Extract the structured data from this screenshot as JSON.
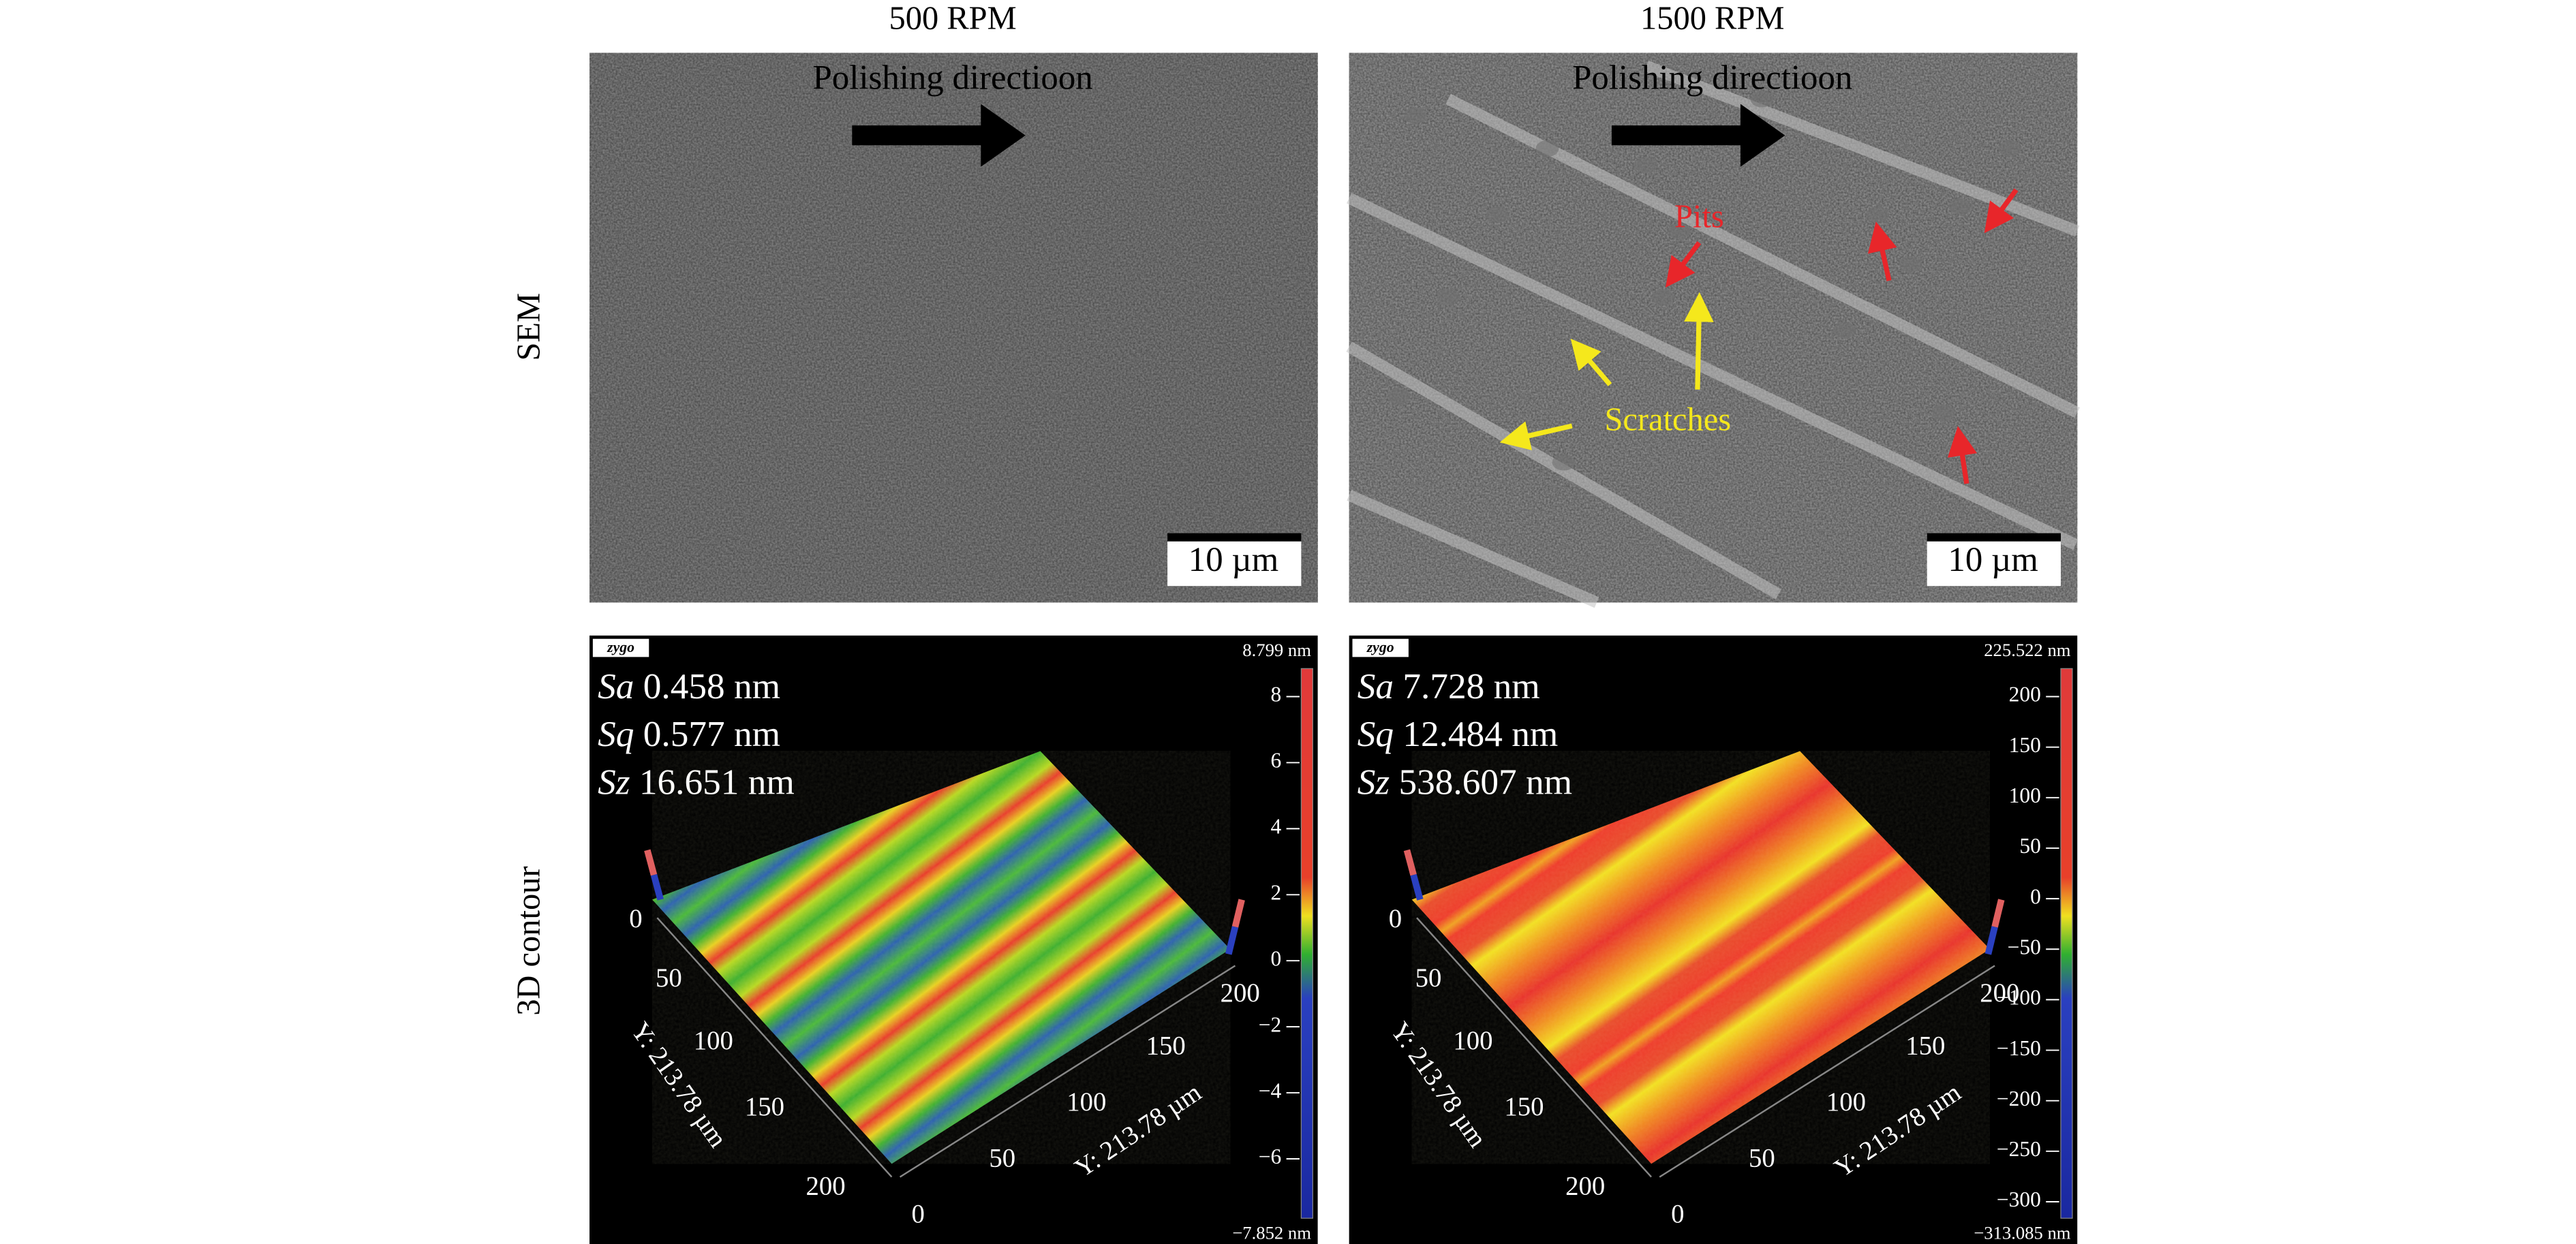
{
  "columns": [
    "500 RPM",
    "1500 RPM"
  ],
  "rows": [
    "SEM",
    "3D contour"
  ],
  "sem": [
    {
      "direction": "Polishing directioon",
      "scale_bar": "10 µm"
    },
    {
      "direction": "Polishing directioon",
      "scale_bar": "10 µm",
      "pits": "Pits",
      "scratches": "Scratches"
    }
  ],
  "contour": [
    {
      "logo": "zygo",
      "roughness": [
        {
          "param": "Sa",
          "value": "0.458 nm"
        },
        {
          "param": "Sq",
          "value": "0.577 nm"
        },
        {
          "param": "Sz",
          "value": "16.651 nm"
        }
      ],
      "max": "8.799 nm",
      "min": "−7.852 nm",
      "scale_ticks": [
        "8",
        "6",
        "4",
        "2",
        "0",
        "−2",
        "−4",
        "−6"
      ],
      "left_axis": {
        "label": "Y: 213.78 µm",
        "ticks": [
          "0",
          "50",
          "100",
          "150",
          "200"
        ]
      },
      "right_axis": {
        "label": "Y: 213.78 µm",
        "ticks": [
          "0",
          "50",
          "100",
          "150",
          "200"
        ]
      }
    },
    {
      "logo": "zygo",
      "roughness": [
        {
          "param": "Sa",
          "value": "7.728 nm"
        },
        {
          "param": "Sq",
          "value": "12.484 nm"
        },
        {
          "param": "Sz",
          "value": "538.607 nm"
        }
      ],
      "max": "225.522 nm",
      "min": "−313.085 nm",
      "scale_ticks": [
        "200",
        "150",
        "100",
        "50",
        "0",
        "−50",
        "−100",
        "−150",
        "−200",
        "−250",
        "−300"
      ],
      "left_axis": {
        "label": "Y: 213.78 µm",
        "ticks": [
          "0",
          "50",
          "100",
          "150",
          "200"
        ]
      },
      "right_axis": {
        "label": "Y: 213.78 µm",
        "ticks": [
          "0",
          "50",
          "100",
          "150",
          "200"
        ]
      }
    }
  ]
}
